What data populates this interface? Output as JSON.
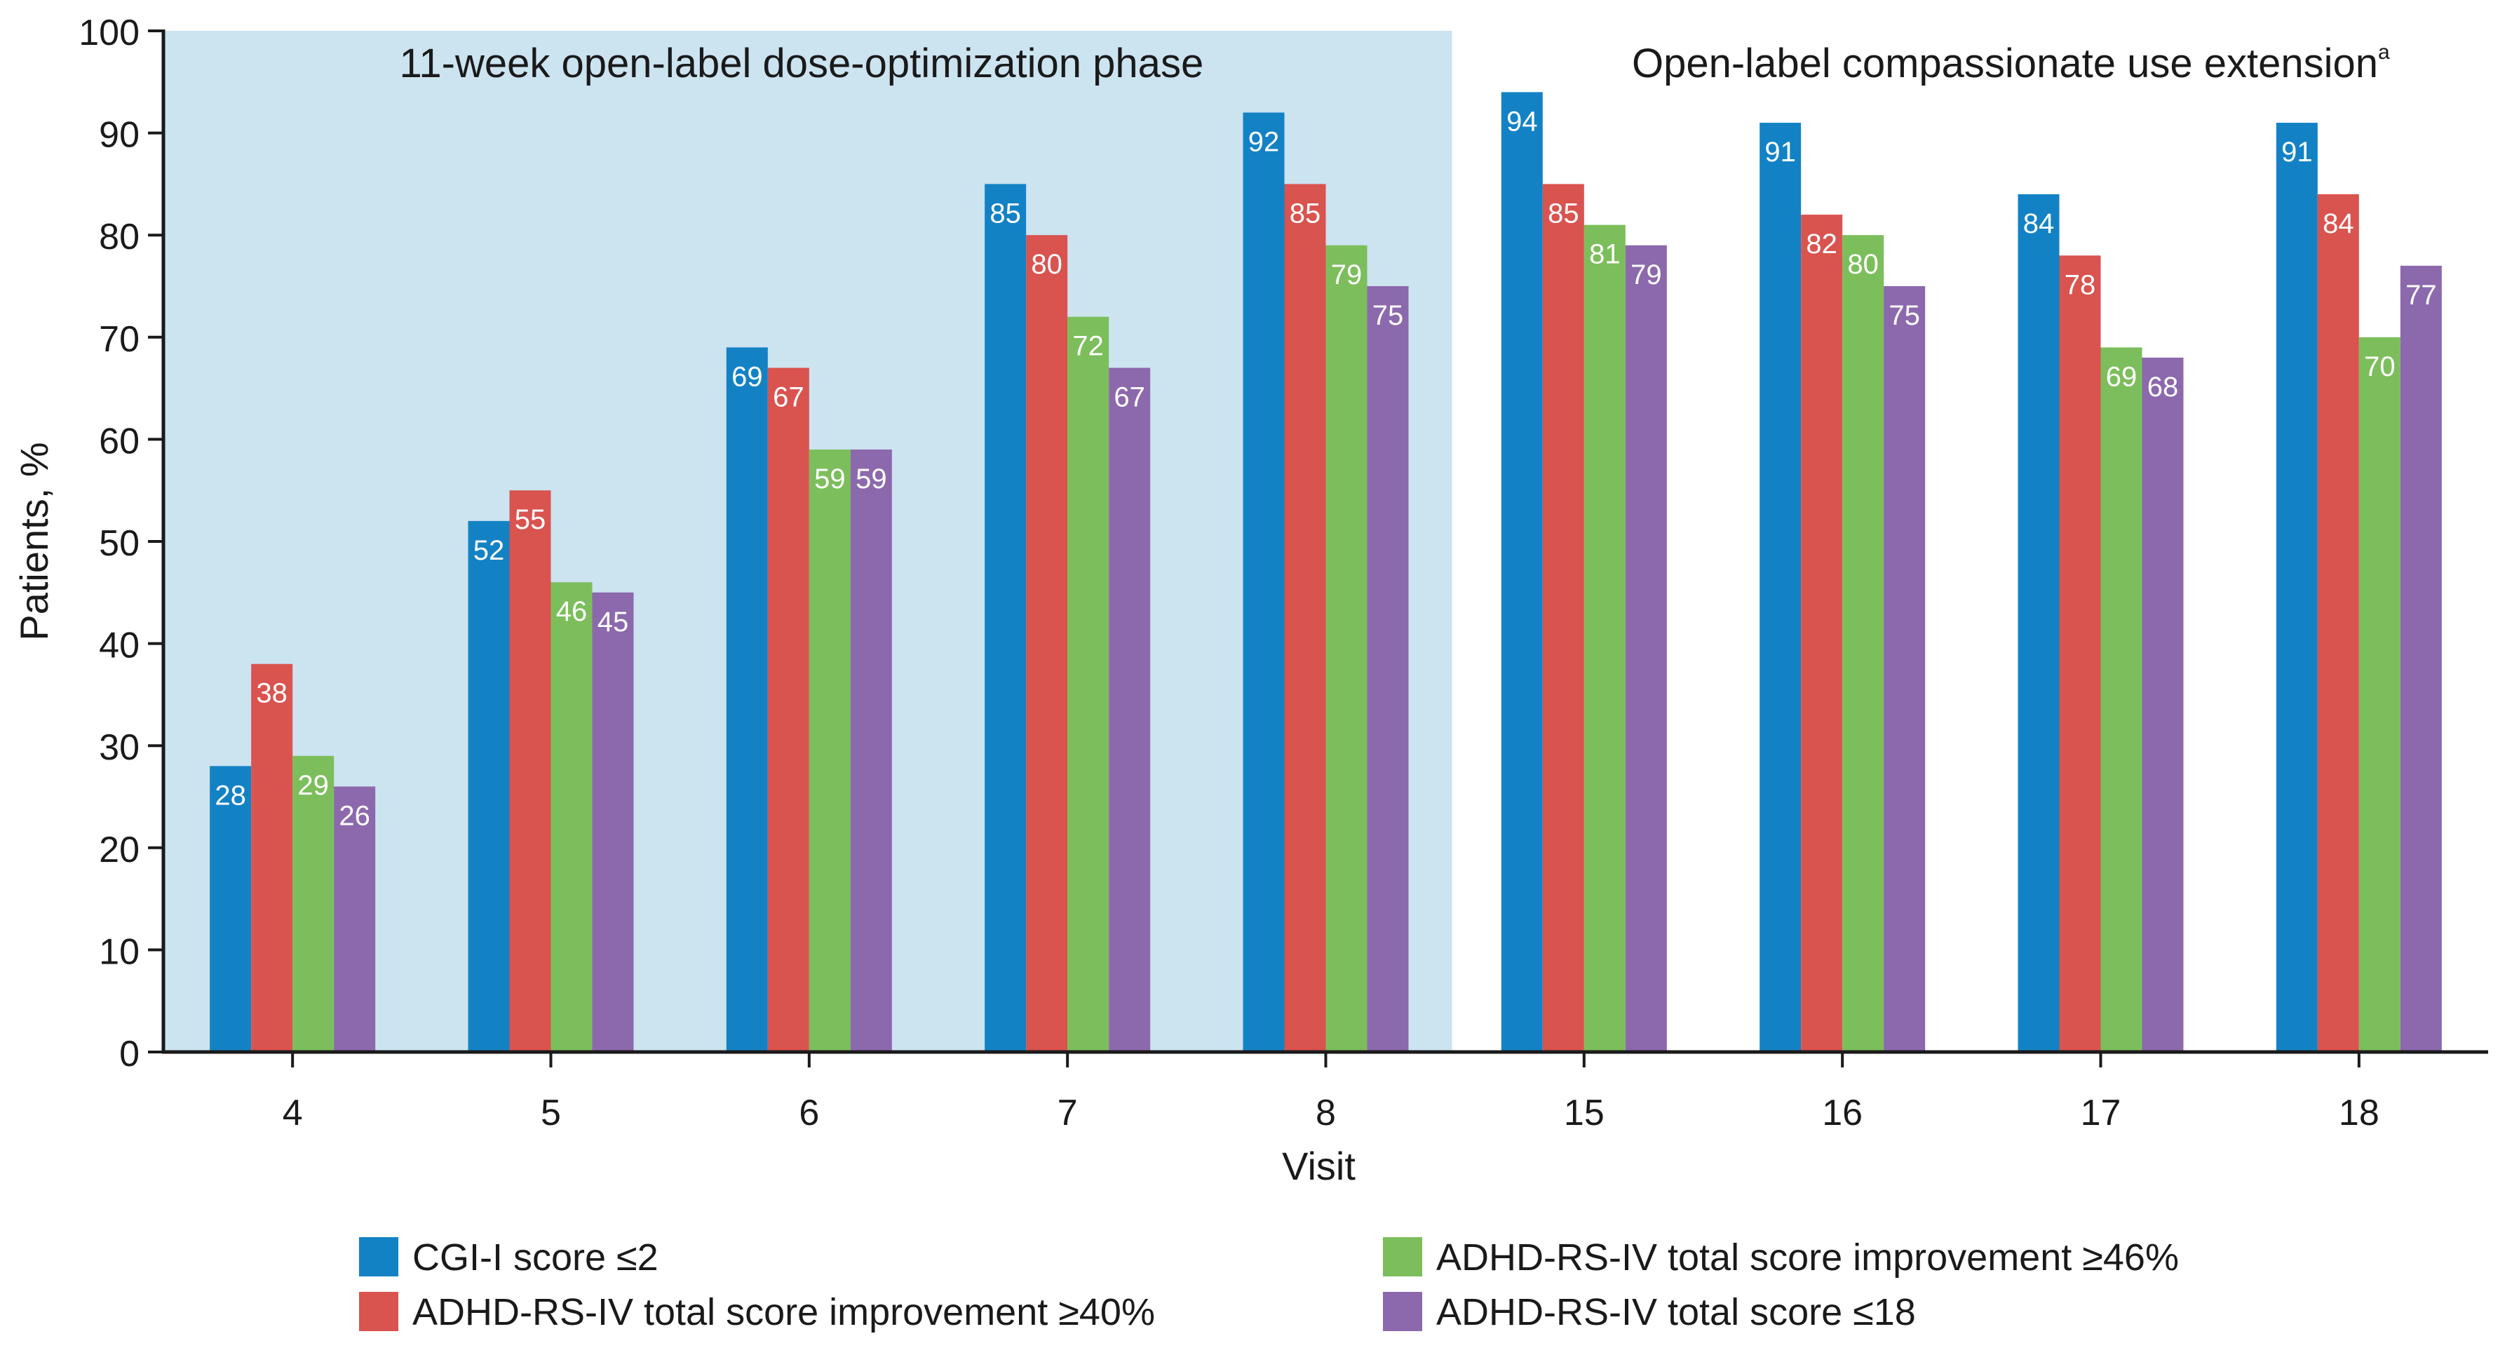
{
  "chart_data": {
    "type": "bar",
    "title": "",
    "xlabel": "Visit",
    "ylabel": "Patients, %",
    "ylim": [
      0,
      100
    ],
    "yticks": [
      "0",
      "10",
      "20",
      "30",
      "40",
      "50",
      "60",
      "70",
      "80",
      "90",
      "100"
    ],
    "categories": [
      "4",
      "5",
      "6",
      "7",
      "8",
      "15",
      "16",
      "17",
      "18"
    ],
    "series": [
      {
        "name": "CGI-I score ≤2",
        "color": "#1382c5",
        "values": [
          28,
          52,
          69,
          85,
          92,
          94,
          91,
          84,
          91
        ]
      },
      {
        "name": "ADHD-RS-IV total score improvement ≥40%",
        "color": "#d9534f",
        "values": [
          38,
          55,
          67,
          80,
          85,
          85,
          82,
          78,
          84
        ]
      },
      {
        "name": "ADHD-RS-IV total score improvement ≥46%",
        "color": "#7cbe5b",
        "values": [
          29,
          46,
          59,
          72,
          79,
          81,
          80,
          69,
          70
        ]
      },
      {
        "name": "ADHD-RS-IV total score ≤18",
        "color": "#8c68ad",
        "values": [
          26,
          45,
          59,
          67,
          75,
          79,
          75,
          68,
          77
        ]
      }
    ],
    "phases": [
      {
        "label": "11-week open-label dose-optimization phase",
        "first_category": "4",
        "last_category": "8",
        "shaded": true,
        "color": "#cce3f0"
      },
      {
        "label": "Open-label compassionate use extension",
        "superscript": "a",
        "first_category": "15",
        "last_category": "18",
        "shaded": false
      }
    ],
    "legend_position": "bottom"
  }
}
